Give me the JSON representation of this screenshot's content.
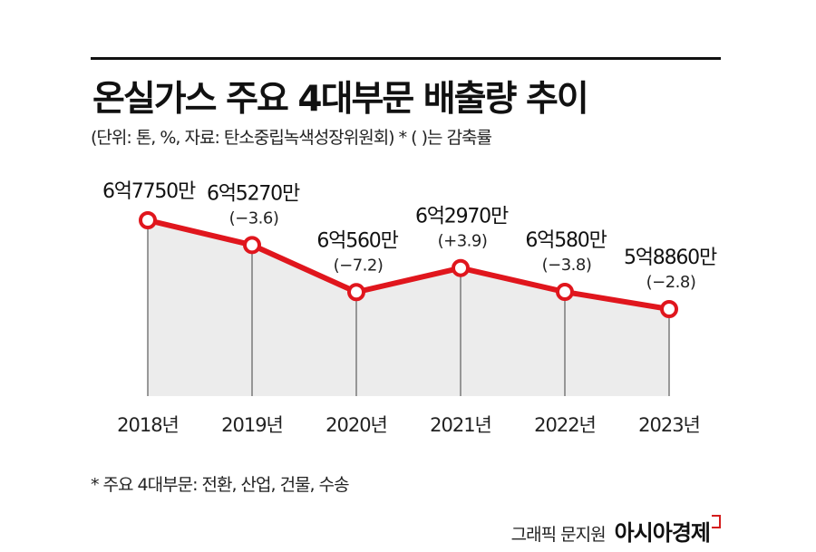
{
  "header": {
    "title": "온실가스 주요 4대부문 배출량 추이",
    "subtitle": "(단위: 톤, %, 자료: 탄소중립녹색성장위원회)  * ( )는 감축률"
  },
  "footer": {
    "note": "* 주요 4대부문: 전환, 산업, 건물, 수송",
    "credit": "그래픽 문지원",
    "brand": "아시아경제"
  },
  "colors": {
    "line": "#e0161d",
    "fill": "#ececec",
    "drop": "#7a7a7a"
  },
  "chart_data": {
    "type": "area",
    "title": "온실가스 주요 4대부문 배출량 추이",
    "unit": "톤",
    "grid": false,
    "categories": [
      "2018년",
      "2019년",
      "2020년",
      "2021년",
      "2022년",
      "2023년"
    ],
    "values": [
      677500000,
      652700000,
      605600000,
      629700000,
      605800000,
      588600000
    ],
    "value_labels": [
      "6억7750만",
      "6억5270만",
      "6억560만",
      "6억2970만",
      "6억580만",
      "5억8860만"
    ],
    "change_labels": [
      "",
      "(−3.6)",
      "(−7.2)",
      "(+3.9)",
      "(−3.8)",
      "(−2.8)"
    ]
  }
}
